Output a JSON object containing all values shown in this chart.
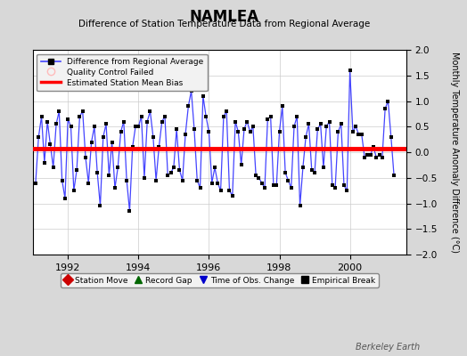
{
  "title": "NAMLEA",
  "subtitle": "Difference of Station Temperature Data from Regional Average",
  "ylabel_right": "Monthly Temperature Anomaly Difference (°C)",
  "ylim": [
    -2,
    2
  ],
  "xlim": [
    1991.0,
    2001.6
  ],
  "xticks": [
    1992,
    1994,
    1996,
    1998,
    2000
  ],
  "yticks": [
    -2,
    -1.5,
    -1,
    -0.5,
    0,
    0.5,
    1,
    1.5,
    2
  ],
  "bias_y": 0.07,
  "watermark": "Berkeley Earth",
  "bg_color": "#d8d8d8",
  "plot_bg_color": "#ffffff",
  "line_color": "#4444ff",
  "marker_color": "#000000",
  "bias_color": "#ff0000",
  "legend1_items": [
    {
      "label": "Difference from Regional Average",
      "color": "#4444ff",
      "marker": "s",
      "linestyle": "-"
    },
    {
      "label": "Quality Control Failed",
      "color": "#ffaaaa",
      "marker": "o",
      "linestyle": "none"
    },
    {
      "label": "Estimated Station Mean Bias",
      "color": "#ff0000",
      "marker": "none",
      "linestyle": "-"
    }
  ],
  "legend2_items": [
    {
      "label": "Station Move",
      "color": "#cc0000",
      "marker": "D"
    },
    {
      "label": "Record Gap",
      "color": "#006600",
      "marker": "^"
    },
    {
      "label": "Time of Obs. Change",
      "color": "#0000cc",
      "marker": "v"
    },
    {
      "label": "Empirical Break",
      "color": "#000000",
      "marker": "s"
    }
  ],
  "x": [
    1991.083,
    1991.167,
    1991.25,
    1991.333,
    1991.417,
    1991.5,
    1991.583,
    1991.667,
    1991.75,
    1991.833,
    1991.917,
    1992.0,
    1992.083,
    1992.167,
    1992.25,
    1992.333,
    1992.417,
    1992.5,
    1992.583,
    1992.667,
    1992.75,
    1992.833,
    1992.917,
    1993.0,
    1993.083,
    1993.167,
    1993.25,
    1993.333,
    1993.417,
    1993.5,
    1993.583,
    1993.667,
    1993.75,
    1993.833,
    1993.917,
    1994.0,
    1994.083,
    1994.167,
    1994.25,
    1994.333,
    1994.417,
    1994.5,
    1994.583,
    1994.667,
    1994.75,
    1994.833,
    1994.917,
    1995.0,
    1995.083,
    1995.167,
    1995.25,
    1995.333,
    1995.417,
    1995.5,
    1995.583,
    1995.667,
    1995.75,
    1995.833,
    1995.917,
    1996.0,
    1996.083,
    1996.167,
    1996.25,
    1996.333,
    1996.417,
    1996.5,
    1996.583,
    1996.667,
    1996.75,
    1996.833,
    1996.917,
    1997.0,
    1997.083,
    1997.167,
    1997.25,
    1997.333,
    1997.417,
    1997.5,
    1997.583,
    1997.667,
    1997.75,
    1997.833,
    1997.917,
    1998.0,
    1998.083,
    1998.167,
    1998.25,
    1998.333,
    1998.417,
    1998.5,
    1998.583,
    1998.667,
    1998.75,
    1998.833,
    1998.917,
    1999.0,
    1999.083,
    1999.167,
    1999.25,
    1999.333,
    1999.417,
    1999.5,
    1999.583,
    1999.667,
    1999.75,
    1999.833,
    1999.917,
    2000.0,
    2000.083,
    2000.167,
    2000.25,
    2000.333,
    2000.417,
    2000.5,
    2000.583,
    2000.667,
    2000.75,
    2000.833,
    2000.917,
    2001.0,
    2001.083,
    2001.167,
    2001.25
  ],
  "y": [
    -0.6,
    0.3,
    0.7,
    -0.2,
    0.6,
    0.15,
    -0.3,
    0.55,
    0.8,
    -0.55,
    -0.9,
    0.65,
    0.5,
    -0.75,
    -0.35,
    0.7,
    0.8,
    -0.1,
    -0.6,
    0.2,
    0.5,
    -0.4,
    -1.05,
    0.3,
    0.55,
    -0.45,
    0.2,
    -0.7,
    -0.3,
    0.4,
    0.6,
    -0.55,
    -1.15,
    0.1,
    0.5,
    0.5,
    0.7,
    -0.5,
    0.6,
    0.8,
    0.3,
    -0.55,
    0.1,
    0.6,
    0.7,
    -0.45,
    -0.4,
    -0.3,
    0.45,
    -0.35,
    -0.55,
    0.35,
    0.9,
    1.2,
    0.45,
    -0.55,
    -0.7,
    1.1,
    0.7,
    0.4,
    -0.6,
    -0.3,
    -0.6,
    -0.75,
    0.7,
    0.8,
    -0.75,
    -0.85,
    0.6,
    0.4,
    -0.25,
    0.45,
    0.6,
    0.4,
    0.5,
    -0.45,
    -0.5,
    -0.6,
    -0.7,
    0.65,
    0.7,
    -0.65,
    -0.65,
    0.4,
    0.9,
    -0.4,
    -0.55,
    -0.7,
    0.5,
    0.7,
    -1.05,
    -0.3,
    0.3,
    0.55,
    -0.35,
    -0.4,
    0.45,
    0.55,
    -0.3,
    0.5,
    0.6,
    -0.65,
    -0.7,
    0.4,
    0.55,
    -0.65,
    -0.75,
    1.6,
    0.4,
    0.5,
    0.35,
    0.35,
    -0.1,
    -0.05,
    -0.05,
    0.1,
    -0.1,
    -0.05,
    -0.1,
    0.85,
    1.0,
    0.3,
    -0.45
  ]
}
